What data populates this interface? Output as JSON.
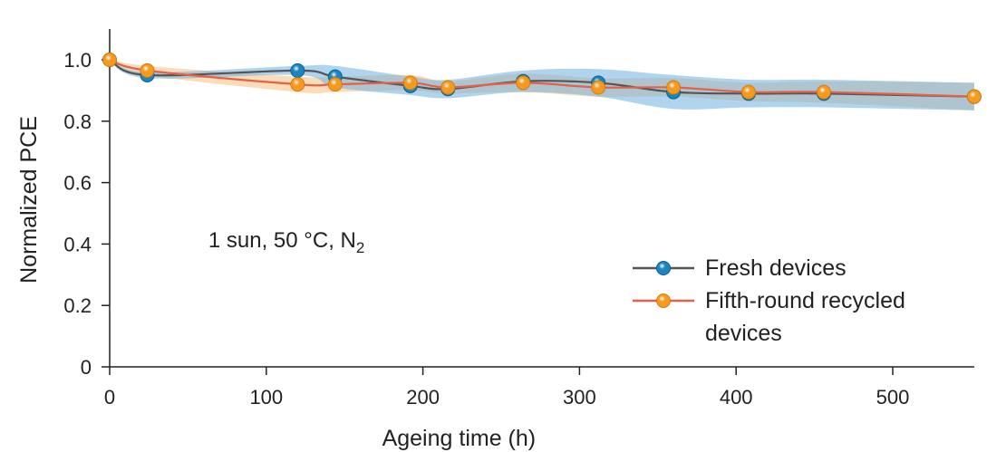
{
  "chart_data": {
    "type": "line",
    "title": "",
    "xlabel": "Ageing time (h)",
    "ylabel": "Normalized PCE",
    "xlim": [
      0,
      555
    ],
    "ylim": [
      0,
      1.1
    ],
    "x_ticks": [
      0,
      100,
      200,
      300,
      400,
      500
    ],
    "x_tick_labels": [
      "0",
      "100",
      "200",
      "300",
      "400",
      "500"
    ],
    "y_ticks": [
      0,
      0.2,
      0.4,
      0.6,
      0.8,
      1.0
    ],
    "y_tick_labels": [
      "0",
      "0.2",
      "0.4",
      "0.6",
      "0.8",
      "1.0"
    ],
    "annotation": {
      "text": "1 sun, 50 °C, N",
      "subscript": "2"
    },
    "legend_position": "right",
    "series": [
      {
        "name": "Fresh devices",
        "line_color": "#555555",
        "marker_color": "#1a86c0",
        "band_color": "#6fb1e0",
        "x": [
          0,
          24,
          120,
          144,
          192,
          216,
          264,
          312,
          360,
          408,
          456,
          552
        ],
        "y": [
          1.0,
          0.95,
          0.965,
          0.945,
          0.915,
          0.905,
          0.93,
          0.925,
          0.895,
          0.89,
          0.89,
          0.88
        ],
        "band": [
          0.004,
          0.01,
          0.015,
          0.035,
          0.03,
          0.03,
          0.035,
          0.045,
          0.055,
          0.045,
          0.045,
          0.045
        ]
      },
      {
        "name": "Fifth-round recycled devices",
        "line_color": "#e3604a",
        "marker_color": "#f59a1f",
        "band_color": "#f6c07e",
        "x": [
          0,
          24,
          120,
          144,
          192,
          216,
          264,
          312,
          360,
          408,
          456,
          552
        ],
        "y": [
          1.0,
          0.965,
          0.92,
          0.92,
          0.925,
          0.91,
          0.925,
          0.91,
          0.91,
          0.895,
          0.895,
          0.88
        ],
        "band": [
          0.004,
          0.015,
          0.025,
          0.025,
          0.025,
          0.02,
          0.03,
          0.03,
          0.03,
          0.03,
          0.035,
          0.045
        ]
      }
    ]
  }
}
